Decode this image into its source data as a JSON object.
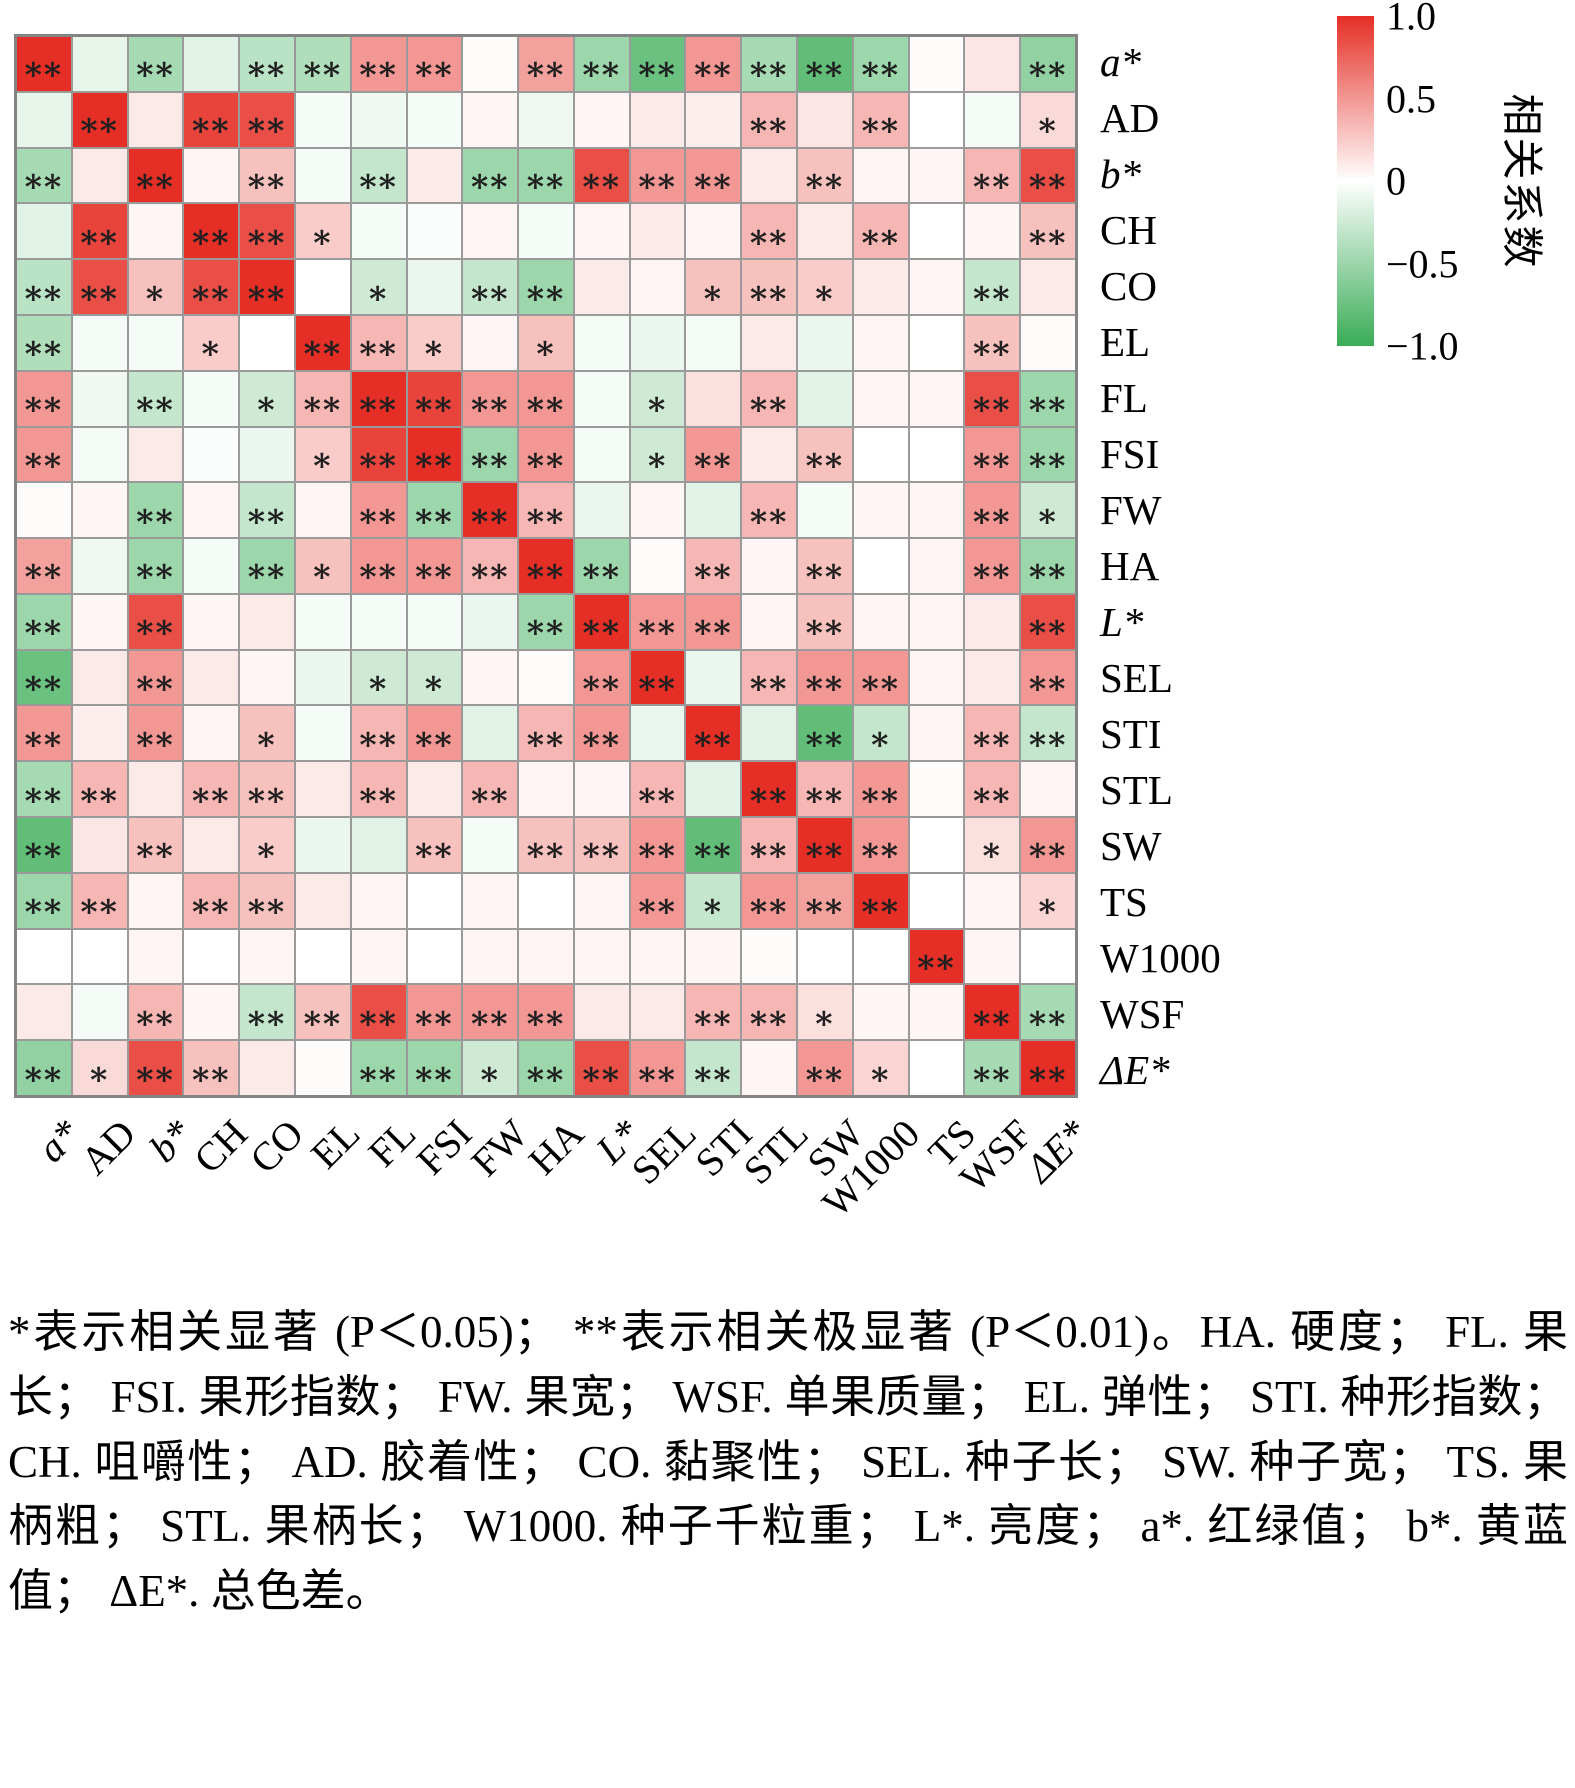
{
  "legend": {
    "title": "相关系数",
    "ticks": [
      "1.0",
      "0.5",
      "0",
      "−0.5",
      "−1.0"
    ],
    "color_top": "#e52f26",
    "color_mid": "#ffffff",
    "color_bottom": "#39ac56"
  },
  "caption": "*表示相关显著 (P＜0.05)；  **表示相关极显著 (P＜0.01)。HA. 硬度；  FL. 果长；  FSI. 果形指数；  FW. 果宽；  WSF. 单果质量；  EL. 弹性；  STI. 种形指数；  CH. 咀嚼性；  AD. 胶着性；  CO. 黏聚性； SEL. 种子长；  SW. 种子宽；  TS. 果柄粗；  STL. 果柄长；  W1000. 种子千粒重；  L*. 亮度；  a*. 红绿值；  b*. 黄蓝值；  ΔE*. 总色差。",
  "chart_data": {
    "type": "heatmap",
    "title": "",
    "row_labels": [
      "a*",
      "AD",
      "b*",
      "CH",
      "CO",
      "EL",
      "FL",
      "FSI",
      "FW",
      "HA",
      "L*",
      "SEL",
      "STI",
      "STL",
      "SW",
      "TS",
      "W1000",
      "WSF",
      "ΔE*"
    ],
    "col_labels": [
      "a*",
      "AD",
      "b*",
      "CH",
      "CO",
      "EL",
      "FL",
      "FSI",
      "FW",
      "HA",
      "L*",
      "SEL",
      "STI",
      "STL",
      "SW",
      "W1000",
      "TS",
      "WSF",
      "ΔE*"
    ],
    "italic_labels": [
      "a*",
      "b*",
      "L*",
      "ΔE*"
    ],
    "colorscale": {
      "min": -1,
      "max": 1,
      "positive": "#e52f26",
      "zero": "#ffffff",
      "negative": "#39ac56"
    },
    "grid_line_color": "#9a9a9a",
    "values": [
      [
        1.0,
        -0.12,
        -0.45,
        -0.15,
        -0.35,
        -0.4,
        0.5,
        0.5,
        0.02,
        0.45,
        -0.5,
        -0.75,
        0.5,
        -0.45,
        -0.8,
        -0.5,
        0.02,
        0.12,
        -0.55
      ],
      [
        -0.12,
        1.0,
        0.1,
        0.9,
        0.85,
        -0.05,
        -0.08,
        -0.05,
        0.05,
        -0.08,
        0.05,
        0.1,
        0.08,
        0.35,
        0.12,
        0.35,
        0.0,
        -0.05,
        0.18
      ],
      [
        -0.45,
        0.1,
        1.0,
        0.05,
        0.3,
        -0.05,
        -0.3,
        0.1,
        -0.5,
        -0.5,
        0.85,
        0.5,
        0.5,
        0.1,
        0.3,
        0.05,
        0.05,
        0.35,
        0.85
      ],
      [
        -0.15,
        0.9,
        0.05,
        1.0,
        0.85,
        0.25,
        -0.05,
        -0.02,
        0.05,
        -0.05,
        0.05,
        0.1,
        0.05,
        0.35,
        0.1,
        0.35,
        0.0,
        0.05,
        0.3
      ],
      [
        -0.35,
        0.85,
        0.3,
        0.85,
        1.0,
        0.0,
        -0.25,
        -0.1,
        -0.3,
        -0.5,
        0.1,
        0.05,
        0.3,
        0.3,
        0.25,
        0.1,
        0.05,
        -0.3,
        0.1
      ],
      [
        -0.4,
        -0.05,
        -0.05,
        0.25,
        0.0,
        1.0,
        0.35,
        0.25,
        0.05,
        0.3,
        -0.05,
        -0.1,
        -0.05,
        0.1,
        -0.1,
        0.05,
        0.0,
        0.3,
        0.02
      ],
      [
        0.5,
        -0.08,
        -0.3,
        -0.05,
        -0.25,
        0.35,
        1.0,
        0.9,
        0.5,
        0.5,
        -0.05,
        -0.25,
        0.15,
        0.35,
        -0.15,
        0.05,
        0.05,
        0.85,
        -0.5
      ],
      [
        0.5,
        -0.05,
        0.1,
        -0.02,
        -0.1,
        0.25,
        0.9,
        1.0,
        -0.5,
        0.5,
        -0.05,
        -0.25,
        0.5,
        0.1,
        0.3,
        0.0,
        0.0,
        0.5,
        -0.5
      ],
      [
        0.02,
        0.05,
        -0.5,
        0.05,
        -0.3,
        0.05,
        0.5,
        -0.5,
        1.0,
        0.35,
        -0.1,
        0.05,
        -0.15,
        0.35,
        -0.05,
        0.05,
        0.05,
        0.5,
        -0.25
      ],
      [
        0.45,
        -0.08,
        -0.5,
        -0.05,
        -0.5,
        0.3,
        0.5,
        0.5,
        0.35,
        1.0,
        -0.5,
        0.02,
        0.35,
        0.05,
        0.3,
        0.0,
        0.05,
        0.5,
        -0.5
      ],
      [
        -0.5,
        0.05,
        0.85,
        0.05,
        0.1,
        -0.05,
        -0.05,
        -0.05,
        -0.1,
        -0.5,
        1.0,
        0.5,
        0.5,
        0.05,
        0.3,
        0.05,
        0.05,
        0.1,
        0.85
      ],
      [
        -0.75,
        0.1,
        0.5,
        0.1,
        0.05,
        -0.1,
        -0.25,
        -0.25,
        0.05,
        0.02,
        0.5,
        1.0,
        -0.1,
        0.35,
        0.5,
        0.5,
        0.05,
        0.1,
        0.5
      ],
      [
        0.5,
        0.08,
        0.5,
        0.05,
        0.3,
        -0.05,
        0.35,
        0.5,
        -0.15,
        0.35,
        0.5,
        -0.1,
        1.0,
        -0.15,
        -0.8,
        -0.3,
        0.05,
        0.35,
        -0.3
      ],
      [
        -0.45,
        0.35,
        0.1,
        0.35,
        0.3,
        0.1,
        0.35,
        0.1,
        0.35,
        0.05,
        0.05,
        0.35,
        -0.15,
        1.0,
        0.35,
        0.5,
        0.02,
        0.35,
        0.05
      ],
      [
        -0.8,
        0.12,
        0.3,
        0.1,
        0.25,
        -0.1,
        -0.15,
        0.3,
        -0.05,
        0.3,
        0.3,
        0.5,
        -0.8,
        0.35,
        1.0,
        0.5,
        0.0,
        0.15,
        0.5
      ],
      [
        -0.5,
        0.35,
        0.05,
        0.35,
        0.3,
        0.1,
        0.05,
        0.0,
        0.05,
        0.0,
        0.05,
        0.5,
        -0.3,
        0.5,
        0.45,
        1.0,
        0.0,
        0.05,
        0.2
      ],
      [
        0.0,
        0.0,
        0.05,
        0.0,
        0.05,
        0.0,
        0.05,
        0.0,
        0.05,
        0.05,
        0.05,
        0.05,
        0.05,
        0.02,
        0.0,
        0.0,
        1.0,
        0.05,
        0.0
      ],
      [
        0.1,
        -0.05,
        0.35,
        0.05,
        -0.3,
        0.3,
        0.85,
        0.5,
        0.5,
        0.5,
        0.1,
        0.1,
        0.35,
        0.35,
        0.15,
        0.05,
        0.05,
        1.0,
        -0.45
      ],
      [
        -0.55,
        0.18,
        0.85,
        0.3,
        0.1,
        0.02,
        -0.5,
        -0.5,
        -0.25,
        -0.5,
        0.85,
        0.5,
        -0.3,
        0.05,
        0.5,
        0.2,
        0.0,
        -0.45,
        1.0
      ]
    ],
    "stars": [
      [
        "**",
        "",
        "**",
        "",
        "**",
        "**",
        "**",
        "**",
        "",
        "**",
        "**",
        "**",
        "**",
        "**",
        "**",
        "**",
        "",
        "",
        "**"
      ],
      [
        "",
        "**",
        "",
        "**",
        "**",
        "",
        "",
        "",
        "",
        "",
        "",
        "",
        "",
        "**",
        "",
        "**",
        "",
        "",
        "*"
      ],
      [
        "**",
        "",
        "**",
        "",
        "**",
        "",
        "**",
        "",
        "**",
        "**",
        "**",
        "**",
        "**",
        "",
        "**",
        "",
        "",
        "**",
        "**"
      ],
      [
        "",
        "**",
        "",
        "**",
        "**",
        "*",
        "",
        "",
        "",
        "",
        "",
        "",
        "",
        "**",
        "",
        "**",
        "",
        "",
        "**"
      ],
      [
        "**",
        "**",
        "*",
        "**",
        "**",
        "",
        "*",
        "",
        "**",
        "**",
        "",
        "",
        "*",
        "**",
        "*",
        "",
        "",
        "**",
        ""
      ],
      [
        "**",
        "",
        "",
        "*",
        "",
        "**",
        "**",
        "*",
        "",
        "*",
        "",
        "",
        "",
        "",
        "",
        "",
        "",
        "**",
        ""
      ],
      [
        "**",
        "",
        "**",
        "",
        "*",
        "**",
        "**",
        "**",
        "**",
        "**",
        "",
        "*",
        "",
        "**",
        "",
        "",
        "",
        "**",
        "**"
      ],
      [
        "**",
        "",
        "",
        "",
        "",
        "*",
        "**",
        "**",
        "**",
        "**",
        "",
        "*",
        "**",
        "",
        "**",
        "",
        "",
        "**",
        "**"
      ],
      [
        "",
        "",
        "**",
        "",
        "**",
        "",
        "**",
        "**",
        "**",
        "**",
        "",
        "",
        "",
        "**",
        "",
        "",
        "",
        "**",
        "*"
      ],
      [
        "**",
        "",
        "**",
        "",
        "**",
        "*",
        "**",
        "**",
        "**",
        "**",
        "**",
        "",
        "**",
        "",
        "**",
        "",
        "",
        "**",
        "**"
      ],
      [
        "**",
        "",
        "**",
        "",
        "",
        "",
        "",
        "",
        "",
        "**",
        "**",
        "**",
        "**",
        "",
        "**",
        "",
        "",
        "",
        "**"
      ],
      [
        "**",
        "",
        "**",
        "",
        "",
        "",
        "*",
        "*",
        "",
        "",
        "**",
        "**",
        "",
        "**",
        "**",
        "**",
        "",
        "",
        "**"
      ],
      [
        "**",
        "",
        "**",
        "",
        "*",
        "",
        "**",
        "**",
        "",
        "**",
        "**",
        "",
        "**",
        "",
        "**",
        "*",
        "",
        "**",
        "**"
      ],
      [
        "**",
        "**",
        "",
        "**",
        "**",
        "",
        "**",
        "",
        "**",
        "",
        "",
        "**",
        "",
        "**",
        "**",
        "**",
        "",
        "**",
        ""
      ],
      [
        "**",
        "",
        "**",
        "",
        "*",
        "",
        "",
        "**",
        "",
        "**",
        "**",
        "**",
        "**",
        "**",
        "**",
        "**",
        "",
        "*",
        "**"
      ],
      [
        "**",
        "**",
        "",
        "**",
        "**",
        "",
        "",
        "",
        "",
        "",
        "",
        "**",
        "*",
        "**",
        "**",
        "**",
        "",
        "",
        "*"
      ],
      [
        "",
        "",
        "",
        "",
        "",
        "",
        "",
        "",
        "",
        "",
        "",
        "",
        "",
        "",
        "",
        "",
        "**",
        "",
        ""
      ],
      [
        "",
        "",
        "**",
        "",
        "**",
        "**",
        "**",
        "**",
        "**",
        "**",
        "",
        "",
        "**",
        "**",
        "*",
        "",
        "",
        "**",
        "**"
      ],
      [
        "**",
        "*",
        "**",
        "**",
        "",
        "",
        "**",
        "**",
        "*",
        "**",
        "**",
        "**",
        "**",
        "",
        "**",
        "*",
        "",
        "**",
        "**"
      ]
    ],
    "significance_legend": {
      "*": "P<0.05",
      "**": "P<0.01"
    }
  }
}
